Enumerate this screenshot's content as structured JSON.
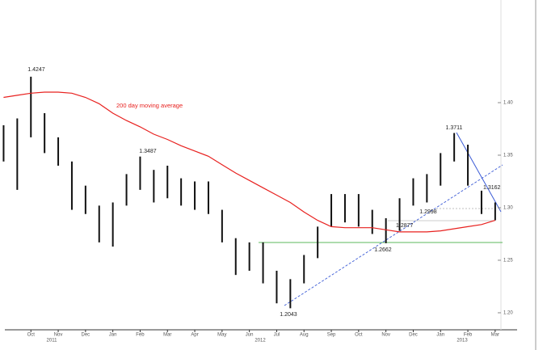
{
  "chart_data": {
    "type": "ohlc",
    "categories": [
      null,
      null,
      "Oct",
      null,
      "Nov",
      null,
      "Dec",
      null,
      "Jan",
      null,
      "Feb",
      null,
      "Mar",
      null,
      "Apr",
      null,
      "May",
      null,
      "Jun",
      null,
      "Jul",
      null,
      "Aug",
      null,
      "Sep",
      null,
      "Oct",
      null,
      "Nov",
      null,
      "Dec",
      null,
      "Jan",
      null,
      "Feb",
      null,
      "Mar"
    ],
    "years": [
      "2011",
      "2012",
      "2013"
    ],
    "high": [
      1.3785,
      1.385,
      1.4247,
      1.39,
      1.367,
      1.344,
      1.321,
      1.302,
      1.305,
      1.332,
      1.3487,
      1.336,
      1.34,
      1.328,
      1.325,
      1.325,
      1.298,
      1.271,
      1.267,
      1.267,
      1.24,
      1.232,
      1.255,
      1.282,
      1.313,
      1.313,
      1.313,
      1.298,
      1.29,
      1.309,
      1.328,
      1.332,
      1.352,
      1.3711,
      1.36,
      1.3162,
      1.305
    ],
    "low": [
      1.344,
      1.317,
      1.367,
      1.352,
      1.34,
      1.298,
      1.294,
      1.267,
      1.263,
      1.302,
      1.317,
      1.305,
      1.309,
      1.302,
      1.298,
      1.294,
      1.267,
      1.236,
      1.24,
      1.228,
      1.209,
      1.2043,
      1.228,
      1.252,
      1.282,
      1.286,
      1.282,
      1.275,
      1.2662,
      1.278,
      1.302,
      1.305,
      1.321,
      1.344,
      1.321,
      1.294,
      1.288
    ],
    "color": "#111111",
    "moving_average": {
      "label": "200 day moving average",
      "color": "#e8211f",
      "values": [
        1.405,
        1.407,
        1.409,
        1.41,
        1.41,
        1.409,
        1.405,
        1.399,
        1.39,
        1.383,
        1.377,
        1.37,
        1.365,
        1.359,
        1.354,
        1.349,
        1.341,
        1.333,
        1.326,
        1.319,
        1.312,
        1.305,
        1.296,
        1.288,
        1.282,
        1.281,
        1.281,
        1.281,
        1.279,
        1.277,
        1.277,
        1.277,
        1.278,
        1.28,
        1.282,
        1.284,
        1.288
      ]
    },
    "annotations": [
      1.4247,
      1.3487,
      1.3711,
      1.3162,
      1.2998,
      1.2877,
      1.2662,
      1.2043
    ],
    "ylim": [
      1.1838,
      1.4977
    ],
    "yticks": [
      {
        "value": 1.2,
        "label": "1.20"
      },
      {
        "value": 1.25,
        "label": "1.25"
      },
      {
        "value": 1.3,
        "label": "1.30"
      },
      {
        "value": 1.35,
        "label": "1.35"
      },
      {
        "value": 1.4,
        "label": "1.40"
      }
    ]
  }
}
